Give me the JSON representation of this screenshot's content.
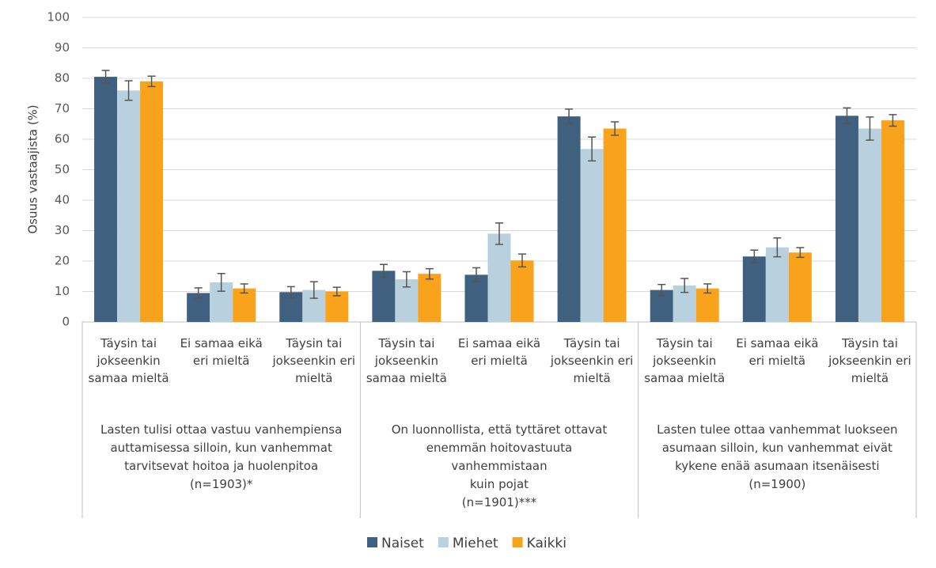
{
  "chart_data": {
    "type": "bar",
    "y_label": "Osuus vastaajista (%)",
    "categories": [
      "Täysin tai jokseenkin samaa mieltä",
      "Ei samaa eikä eri mieltä",
      "Täysin tai jokseenkin eri mieltä",
      "Täysin tai jokseenkin samaa mieltä",
      "Ei samaa eikä eri mieltä",
      "Täysin tai jokseenkin eri mieltä",
      "Täysin tai jokseenkin samaa mieltä",
      "Ei samaa eikä eri mieltä",
      "Täysin tai jokseenkin eri mieltä"
    ],
    "groups": [
      {
        "lines": [
          "Lasten tulisi ottaa vastuu vanhempiensa",
          "auttamisessa silloin, kun vanhemmat",
          "tarvitsevat hoitoa ja huolenpitoa",
          "(n=1903)*"
        ]
      },
      {
        "lines": [
          "On luonnollista, että tyttäret ottavat",
          "enemmän hoitovastuuta",
          "vanhemmistaan",
          "kuin pojat",
          "(n=1901)***"
        ]
      },
      {
        "lines": [
          "Lasten tulee ottaa vanhemmat luokseen",
          "asumaan silloin, kun vanhemmat eivät",
          "kykene enää asumaan itsenäisesti",
          "(n=1900)"
        ]
      }
    ],
    "series": [
      {
        "name": "Naiset",
        "color": "#3f607f",
        "values": [
          80.5,
          9.5,
          9.8,
          16.8,
          15.5,
          67.5,
          10.5,
          21.5,
          67.7
        ],
        "errors": [
          2.1,
          1.7,
          1.8,
          2.1,
          2.3,
          2.4,
          1.8,
          2.1,
          2.6
        ]
      },
      {
        "name": "Miehet",
        "color": "#b9d1df",
        "values": [
          76,
          13,
          10.5,
          14,
          29,
          56.8,
          12,
          24.5,
          63.5
        ],
        "errors": [
          3.2,
          2.9,
          2.7,
          2.5,
          3.5,
          3.9,
          2.3,
          3.1,
          3.8
        ]
      },
      {
        "name": "Kaikki",
        "color": "#f9a31c",
        "values": [
          79,
          11,
          10,
          15.8,
          20.2,
          63.5,
          11,
          22.8,
          66.2
        ],
        "errors": [
          1.7,
          1.5,
          1.4,
          1.7,
          2.1,
          2.2,
          1.5,
          1.6,
          1.9
        ]
      }
    ],
    "ylim": [
      0,
      100
    ],
    "yticks": [
      0,
      10,
      20,
      30,
      40,
      50,
      60,
      70,
      80,
      90,
      100
    ],
    "grid": true
  }
}
